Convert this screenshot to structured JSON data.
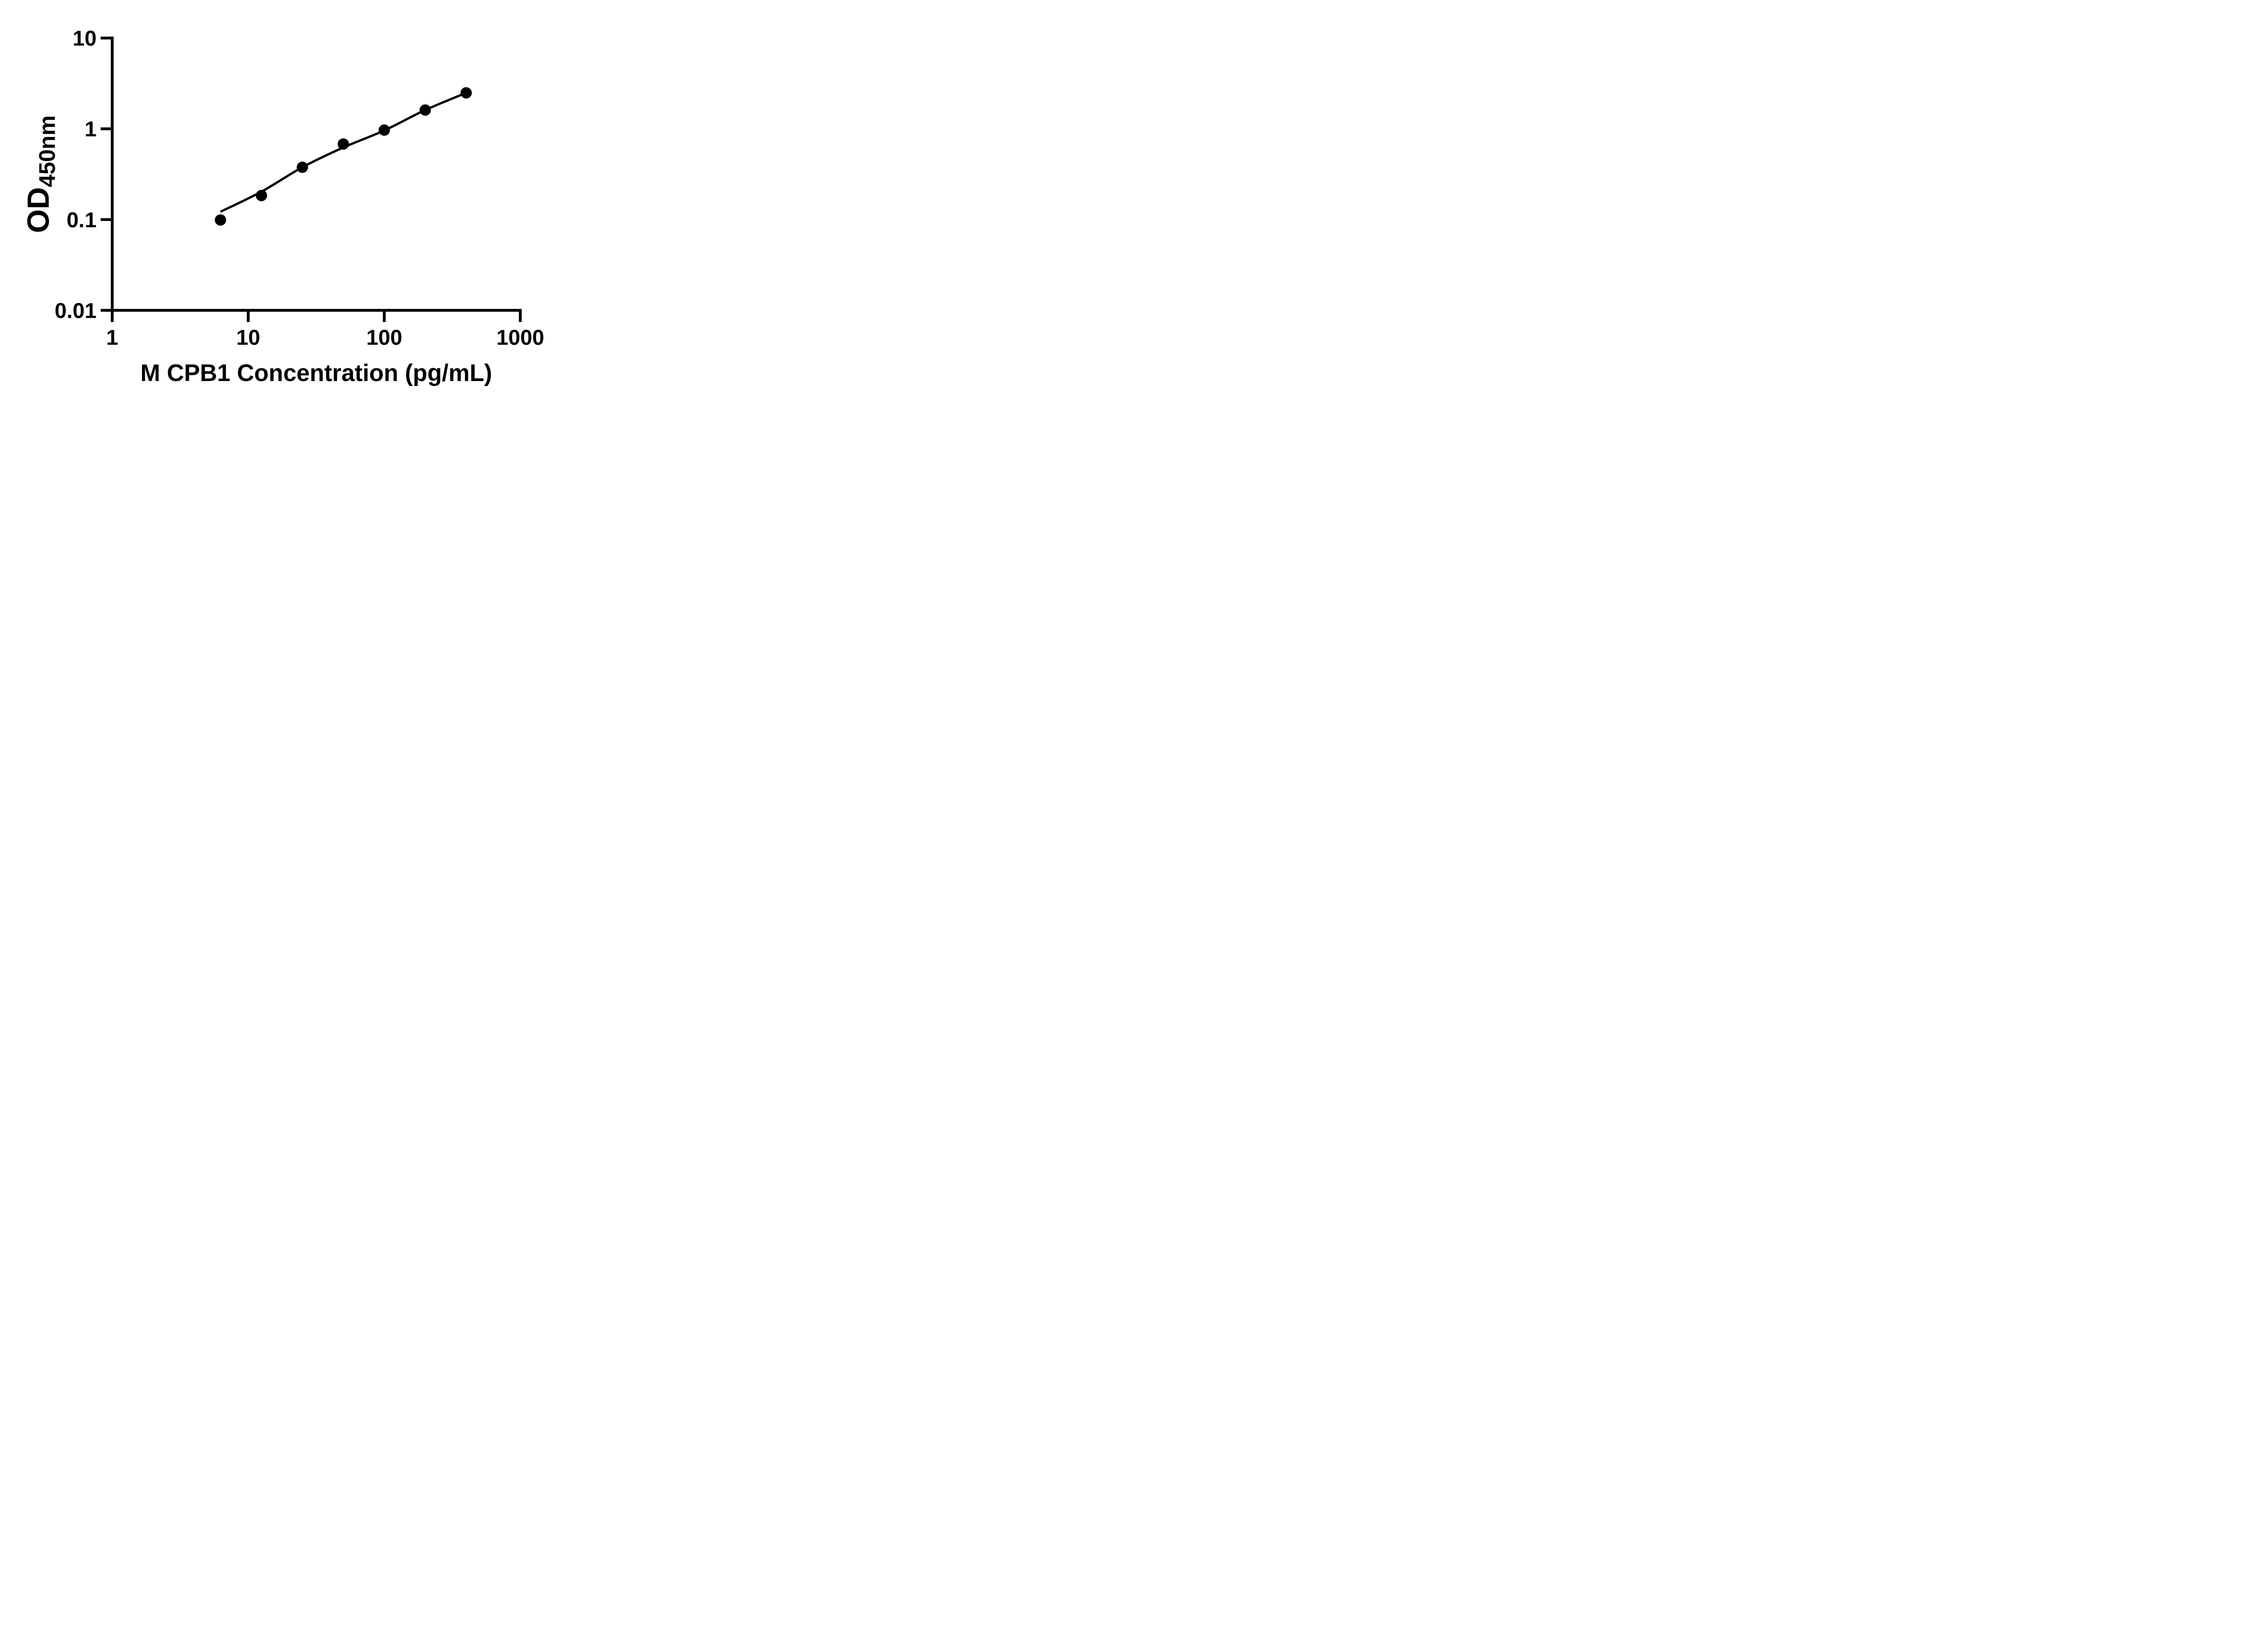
{
  "figure": {
    "background": "#ffffff",
    "axis_color": "#000000",
    "point_color": "#000000",
    "curve_color": "#000000"
  },
  "chart_data": {
    "type": "scatter",
    "title": "",
    "xlabel": "M CPB1 Concentration (pg/mL)",
    "ylabel_main": "OD",
    "ylabel_sub": "450nm",
    "x_scale": "log",
    "y_scale": "log",
    "xlim": [
      1,
      1000
    ],
    "ylim": [
      0.01,
      10
    ],
    "grid": false,
    "legend": null,
    "x_ticks": [
      {
        "value": 1,
        "label": "1"
      },
      {
        "value": 10,
        "label": "10"
      },
      {
        "value": 100,
        "label": "100"
      },
      {
        "value": 1000,
        "label": "1000"
      }
    ],
    "y_ticks": [
      {
        "value": 10,
        "label": "10"
      },
      {
        "value": 1,
        "label": "1"
      },
      {
        "value": 0.1,
        "label": "0.1"
      },
      {
        "value": 0.01,
        "label": "0.01"
      }
    ],
    "series": [
      {
        "name": "standard-points",
        "type": "scatter",
        "marker": "circle",
        "points": [
          {
            "x": 6.25,
            "y": 0.099
          },
          {
            "x": 12.5,
            "y": 0.184
          },
          {
            "x": 25,
            "y": 0.377
          },
          {
            "x": 50,
            "y": 0.68
          },
          {
            "x": 100,
            "y": 0.968
          },
          {
            "x": 200,
            "y": 1.61
          },
          {
            "x": 400,
            "y": 2.49
          }
        ]
      },
      {
        "name": "fit-curve",
        "type": "line",
        "points": [
          {
            "x": 6.25,
            "y": 0.122
          },
          {
            "x": 12.5,
            "y": 0.203
          },
          {
            "x": 25,
            "y": 0.377
          },
          {
            "x": 50,
            "y": 0.623
          },
          {
            "x": 100,
            "y": 0.959
          },
          {
            "x": 200,
            "y": 1.61
          },
          {
            "x": 400,
            "y": 2.49
          }
        ]
      }
    ]
  }
}
